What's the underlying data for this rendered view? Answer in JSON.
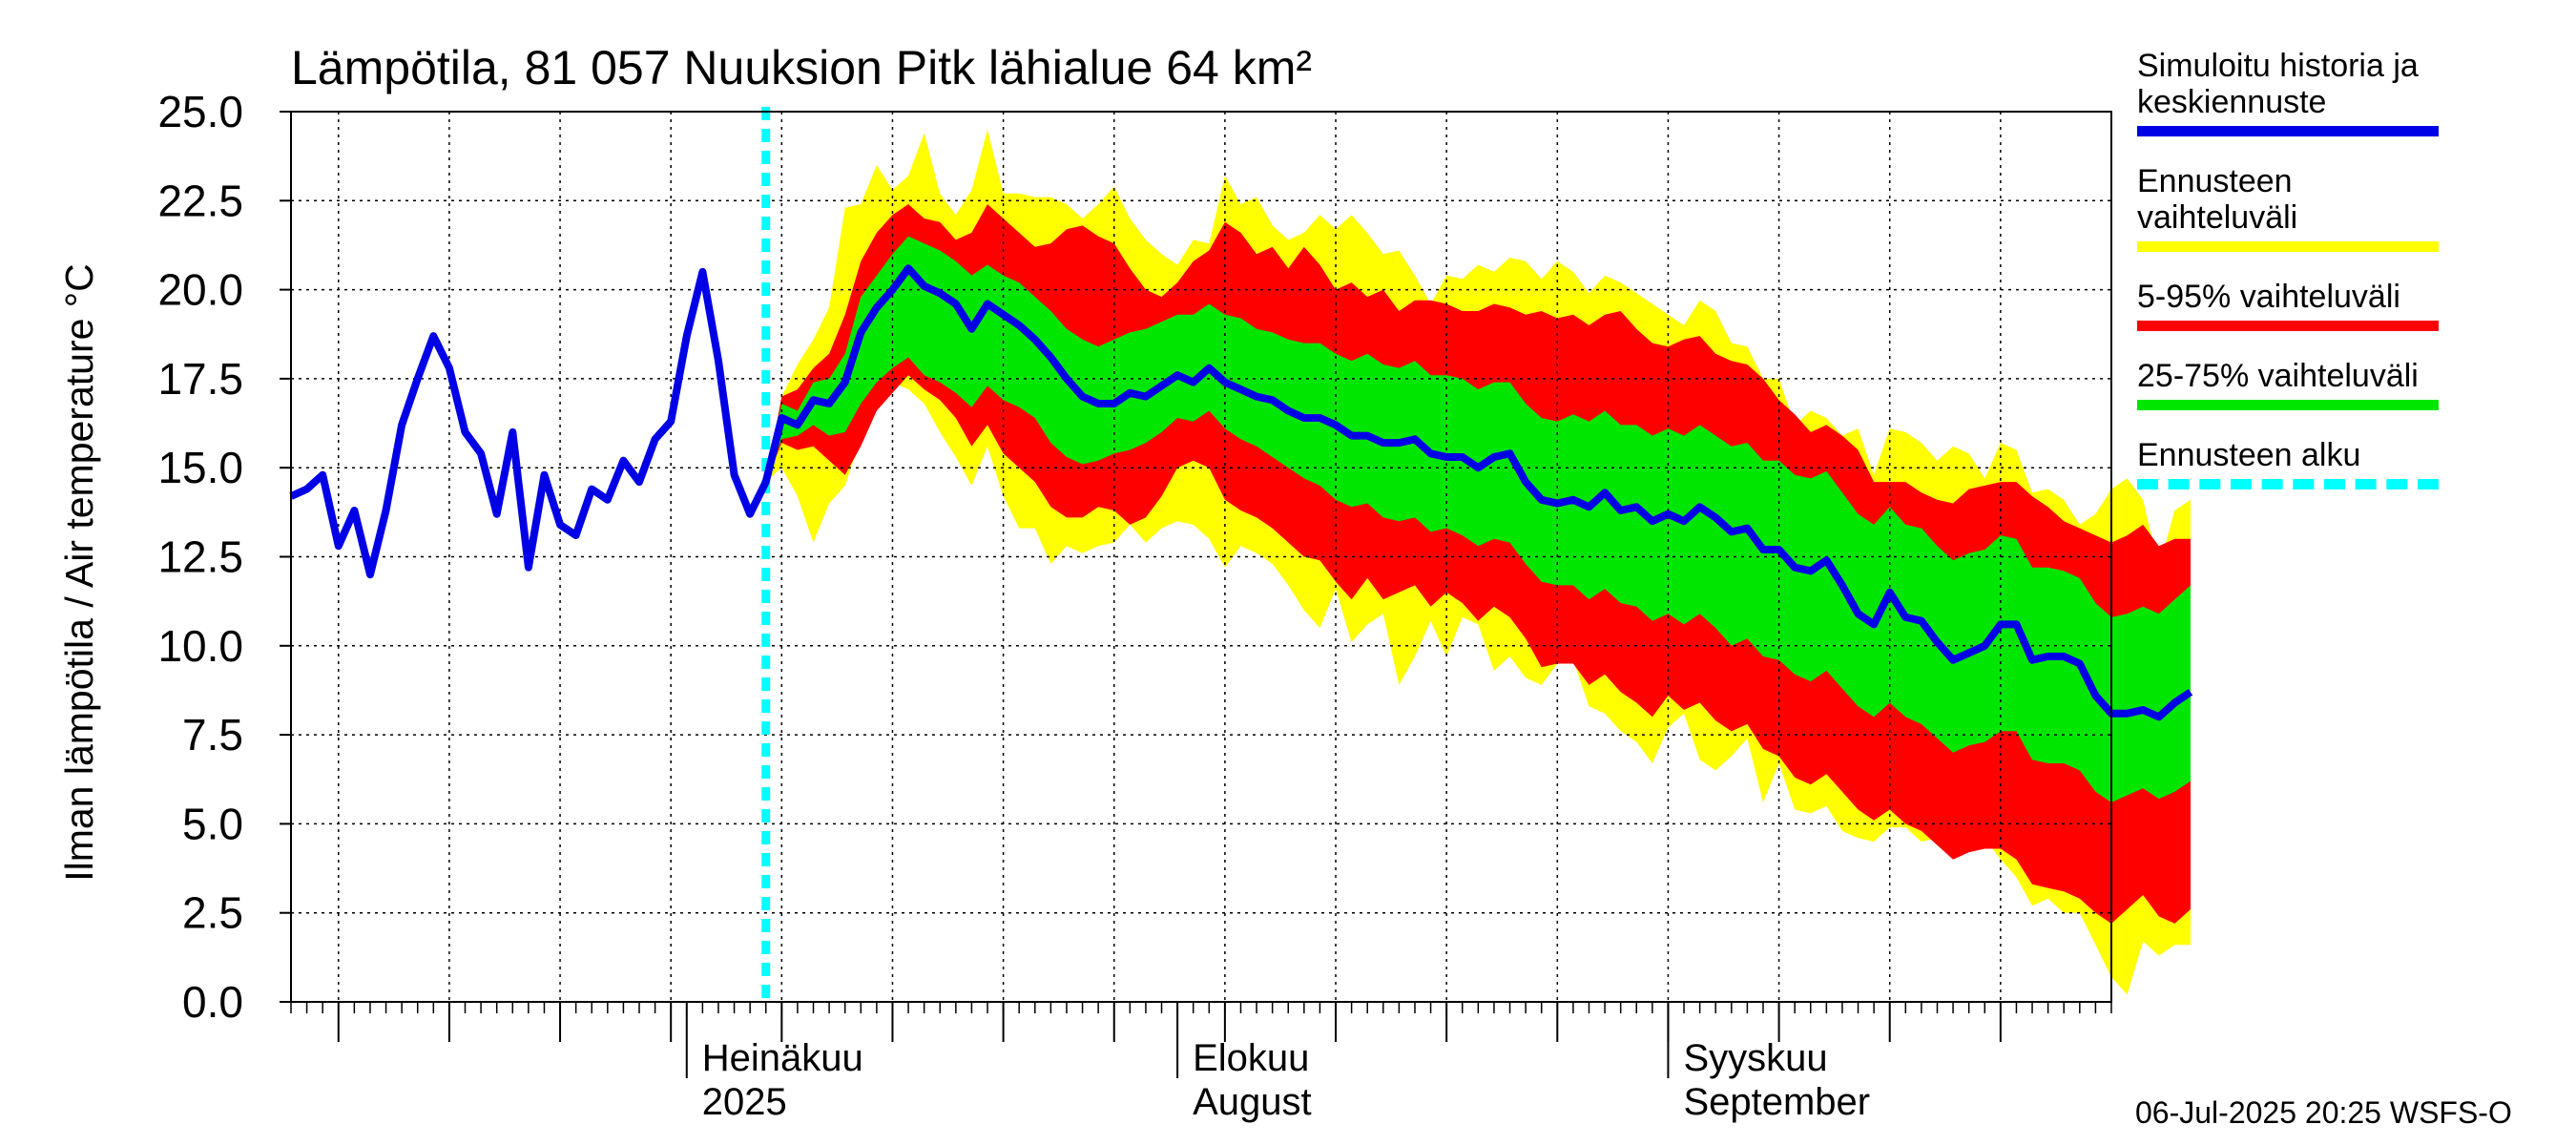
{
  "chart_data": {
    "type": "area",
    "title": "Lämpötila, 81 057 Nuuksion Pitk lähialue 64 km²",
    "ylabel": "Ilman lämpötila / Air temperature   °C",
    "ylim": [
      0.0,
      25.0
    ],
    "yticks": [
      "0.0",
      "2.5",
      "5.0",
      "7.5",
      "10.0",
      "12.5",
      "15.0",
      "17.5",
      "20.0",
      "22.5",
      "25.0"
    ],
    "x_range": [
      "2025-06-06",
      "2025-09-29"
    ],
    "month_labels": [
      {
        "date": "2025-07-01",
        "line1": "Heinäkuu",
        "line2": "2025"
      },
      {
        "date": "2025-08-01",
        "line1": "Elokuu",
        "line2": "August"
      },
      {
        "date": "2025-09-01",
        "line1": "Syyskuu",
        "line2": "September"
      }
    ],
    "forecast_start": "2025-07-06",
    "grid": true,
    "legend_position": "right",
    "history": {
      "start_date": "2025-06-06",
      "values": [
        14.2,
        14.4,
        14.8,
        12.8,
        13.8,
        12.0,
        13.8,
        16.2,
        17.5,
        18.7,
        17.8,
        16.0,
        15.4,
        13.7,
        16.0,
        12.2,
        14.8,
        13.4,
        13.1,
        14.4,
        14.1,
        15.2,
        14.6,
        15.8,
        16.3,
        18.7,
        20.5,
        18.0,
        14.8,
        13.7,
        14.6
      ]
    },
    "forecast": {
      "start_date": "2025-07-06",
      "median": [
        14.6,
        16.4,
        16.2,
        16.9,
        16.8,
        17.4,
        18.8,
        19.5,
        20.0,
        20.6,
        20.1,
        19.9,
        19.6,
        18.9,
        19.6,
        19.3,
        19.0,
        18.6,
        18.1,
        17.5,
        17.0,
        16.8,
        16.8,
        17.1,
        17.0,
        17.3,
        17.6,
        17.4,
        17.8,
        17.4,
        17.2,
        17.0,
        16.9,
        16.6,
        16.4,
        16.4,
        16.2,
        15.9,
        15.9,
        15.7,
        15.7,
        15.8,
        15.4,
        15.3,
        15.3,
        15.0,
        15.3,
        15.4,
        14.6,
        14.1,
        14.0,
        14.1,
        13.9,
        14.3,
        13.8,
        13.9,
        13.5,
        13.7,
        13.5,
        13.9,
        13.6,
        13.2,
        13.3,
        12.7,
        12.7,
        12.2,
        12.1,
        12.4,
        11.7,
        10.9,
        10.6,
        11.5,
        10.8,
        10.7,
        10.1,
        9.6,
        9.8,
        10.0,
        10.6,
        10.6,
        9.6,
        9.7,
        9.7,
        9.5,
        8.6,
        8.1,
        8.1,
        8.2,
        8.0,
        8.4,
        8.7
      ],
      "p25": [
        14.6,
        15.8,
        15.9,
        16.2,
        15.9,
        16.0,
        16.8,
        17.4,
        17.8,
        18.1,
        17.6,
        17.4,
        17.1,
        16.7,
        17.3,
        16.9,
        16.7,
        16.4,
        15.7,
        15.3,
        15.1,
        15.2,
        15.4,
        15.5,
        15.7,
        16.0,
        16.4,
        16.3,
        16.6,
        16.1,
        15.8,
        15.6,
        15.3,
        15.0,
        14.7,
        14.5,
        14.1,
        13.9,
        14.0,
        13.6,
        13.5,
        13.6,
        13.2,
        13.3,
        13.1,
        12.8,
        13.0,
        12.9,
        12.3,
        11.8,
        11.7,
        11.7,
        11.3,
        11.6,
        11.2,
        11.1,
        10.7,
        10.9,
        10.6,
        10.9,
        10.5,
        10.0,
        10.2,
        9.7,
        9.6,
        9.2,
        9.0,
        9.3,
        8.8,
        8.3,
        8.0,
        8.4,
        8.0,
        7.8,
        7.4,
        7.0,
        7.2,
        7.3,
        7.6,
        7.6,
        6.8,
        6.7,
        6.7,
        6.5,
        5.9,
        5.6,
        5.8,
        6.0,
        5.7,
        5.9,
        6.2
      ],
      "p75": [
        14.6,
        16.8,
        16.6,
        17.4,
        17.5,
        18.2,
        19.8,
        20.4,
        21.0,
        21.5,
        21.3,
        21.1,
        20.8,
        20.4,
        20.7,
        20.4,
        20.2,
        19.8,
        19.4,
        18.9,
        18.6,
        18.4,
        18.6,
        18.8,
        18.9,
        19.1,
        19.3,
        19.3,
        19.6,
        19.3,
        19.2,
        18.9,
        18.8,
        18.6,
        18.5,
        18.5,
        18.2,
        18.0,
        18.2,
        17.9,
        17.8,
        18.0,
        17.6,
        17.6,
        17.5,
        17.2,
        17.4,
        17.4,
        16.8,
        16.4,
        16.3,
        16.5,
        16.3,
        16.6,
        16.2,
        16.2,
        15.9,
        16.1,
        15.9,
        16.2,
        15.9,
        15.6,
        15.7,
        15.2,
        15.2,
        14.8,
        14.7,
        14.9,
        14.3,
        13.7,
        13.4,
        13.9,
        13.4,
        13.3,
        12.8,
        12.4,
        12.6,
        12.7,
        13.1,
        13.0,
        12.2,
        12.2,
        12.1,
        11.9,
        11.2,
        10.8,
        10.9,
        11.1,
        10.9,
        11.3,
        11.7
      ],
      "p05": [
        14.6,
        15.7,
        15.5,
        15.6,
        15.2,
        14.8,
        15.6,
        16.6,
        17.1,
        17.6,
        17.2,
        16.9,
        16.4,
        15.6,
        16.2,
        15.4,
        15.0,
        14.6,
        13.9,
        13.6,
        13.6,
        13.9,
        13.8,
        13.4,
        13.6,
        14.2,
        15.0,
        15.2,
        15.0,
        14.1,
        13.8,
        13.6,
        13.3,
        12.9,
        12.5,
        12.4,
        11.8,
        11.3,
        11.9,
        11.3,
        11.5,
        11.7,
        11.1,
        11.5,
        11.2,
        10.7,
        11.1,
        10.8,
        10.2,
        9.4,
        9.5,
        9.5,
        8.9,
        9.2,
        8.7,
        8.4,
        8.0,
        8.6,
        8.2,
        8.4,
        7.9,
        7.6,
        7.8,
        7.1,
        6.9,
        6.3,
        6.1,
        6.4,
        5.9,
        5.4,
        5.1,
        5.4,
        5.0,
        4.8,
        4.4,
        4.0,
        4.2,
        4.3,
        4.3,
        4.0,
        3.3,
        3.2,
        3.1,
        2.9,
        2.5,
        2.2,
        2.6,
        3.0,
        2.4,
        2.2,
        2.6
      ],
      "p95": [
        14.6,
        17.0,
        17.2,
        17.8,
        18.2,
        19.3,
        20.8,
        21.6,
        22.1,
        22.4,
        22.0,
        21.9,
        21.4,
        21.6,
        22.4,
        22.0,
        21.6,
        21.2,
        21.3,
        21.7,
        21.8,
        21.5,
        21.3,
        20.6,
        20.0,
        19.8,
        20.2,
        20.8,
        21.1,
        21.9,
        21.6,
        21.0,
        21.2,
        20.6,
        21.2,
        20.7,
        20.0,
        20.2,
        19.8,
        20.0,
        19.4,
        19.7,
        19.7,
        19.6,
        19.4,
        19.4,
        19.6,
        19.5,
        19.3,
        19.4,
        19.2,
        19.3,
        19.0,
        19.3,
        19.4,
        18.9,
        18.5,
        18.4,
        18.6,
        18.7,
        18.2,
        18.0,
        17.9,
        17.5,
        16.9,
        16.5,
        16.0,
        16.2,
        15.9,
        15.5,
        14.6,
        14.6,
        14.6,
        14.3,
        14.1,
        14.0,
        14.4,
        14.5,
        14.6,
        14.6,
        14.2,
        13.9,
        13.5,
        13.3,
        13.1,
        12.9,
        13.1,
        13.4,
        12.8,
        13.0,
        13.0
      ],
      "min": [
        14.6,
        15.0,
        14.2,
        12.9,
        14.0,
        14.5,
        15.8,
        17.3,
        17.4,
        17.2,
        16.8,
        16.0,
        15.3,
        14.5,
        15.6,
        14.2,
        13.3,
        13.3,
        12.3,
        12.8,
        12.6,
        12.8,
        12.9,
        13.4,
        12.9,
        13.3,
        13.5,
        13.4,
        13.0,
        12.2,
        12.8,
        12.6,
        12.3,
        11.7,
        11.0,
        10.5,
        11.6,
        10.1,
        10.6,
        10.9,
        8.9,
        9.7,
        10.7,
        9.7,
        10.8,
        10.6,
        9.3,
        9.7,
        9.1,
        8.9,
        9.5,
        9.6,
        8.3,
        8.1,
        7.6,
        7.3,
        6.7,
        7.7,
        8.1,
        6.8,
        6.5,
        6.9,
        7.4,
        5.6,
        6.7,
        5.4,
        5.3,
        5.5,
        4.8,
        4.6,
        4.5,
        4.9,
        4.9,
        4.5,
        4.6,
        4.1,
        4.4,
        4.6,
        4.0,
        3.5,
        2.7,
        2.9,
        2.5,
        2.5,
        1.6,
        0.7,
        0.2,
        1.7,
        1.3,
        1.6,
        1.6
      ],
      "max": [
        14.6,
        17.0,
        17.9,
        18.6,
        19.5,
        22.3,
        22.4,
        23.5,
        22.8,
        23.2,
        24.4,
        22.7,
        22.1,
        22.8,
        24.5,
        22.7,
        22.7,
        22.6,
        22.6,
        22.4,
        22.0,
        22.4,
        22.9,
        22.0,
        21.4,
        21.0,
        20.7,
        21.4,
        21.3,
        23.2,
        22.4,
        22.6,
        21.8,
        21.4,
        21.6,
        22.1,
        21.7,
        22.1,
        21.6,
        21.0,
        21.1,
        20.4,
        19.6,
        20.4,
        20.3,
        20.7,
        20.5,
        20.9,
        20.8,
        20.3,
        20.8,
        20.5,
        19.9,
        20.4,
        20.2,
        19.9,
        19.6,
        19.3,
        19.0,
        19.7,
        19.4,
        18.5,
        18.4,
        17.5,
        17.5,
        16.2,
        16.6,
        16.4,
        15.9,
        16.1,
        14.8,
        16.1,
        16.0,
        15.7,
        15.2,
        15.6,
        15.4,
        14.7,
        15.7,
        15.5,
        14.3,
        14.4,
        14.1,
        13.4,
        13.7,
        14.4,
        14.7,
        14.1,
        12.2,
        13.8,
        14.1
      ]
    },
    "legend": [
      {
        "label": "Simuloitu historia ja\nkeskiennuste",
        "color": "#0000e6"
      },
      {
        "label": "Ennusteen vaihteluväli",
        "color": "#ffff00"
      },
      {
        "label": "5-95% vaihteluväli",
        "color": "#ff0000"
      },
      {
        "label": "25-75% vaihteluväli",
        "color": "#00e600"
      },
      {
        "label": "Ennusteen alku",
        "color": "#00ffff"
      }
    ],
    "footer": "06-Jul-2025 20:25 WSFS-O"
  }
}
